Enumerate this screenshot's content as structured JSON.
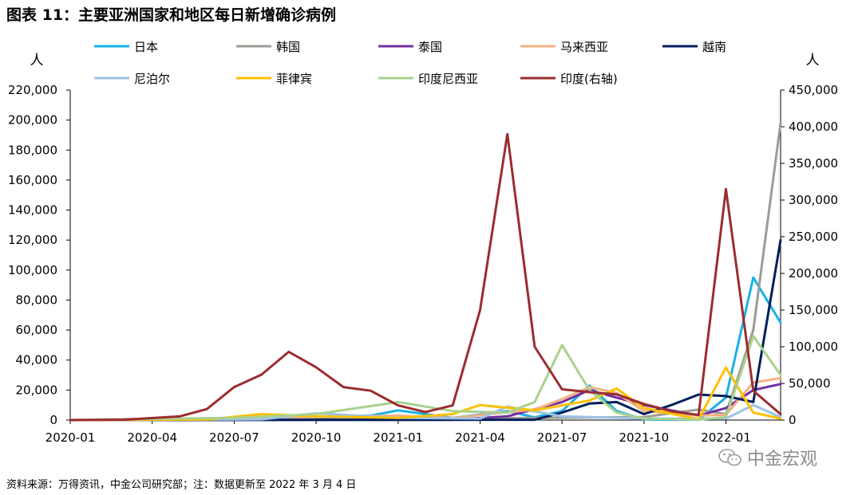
{
  "title": "图表 11：主要亚洲国家和地区每日新增确诊病例",
  "source": "资料来源：万得资讯，中金公司研究部；注：数据更新至 2022 年 3 月 4 日",
  "watermark": "中金宏观",
  "chart_data": {
    "type": "line",
    "title": "图表 11：主要亚洲国家和地区每日新增确诊病例",
    "ylabel_left": "人",
    "ylabel_right": "人",
    "ylim_left": [
      0,
      220000
    ],
    "ylim_right": [
      0,
      450000
    ],
    "yticks_left": [
      "0",
      "20,000",
      "40,000",
      "60,000",
      "80,000",
      "100,000",
      "120,000",
      "140,000",
      "160,000",
      "180,000",
      "200,000",
      "220,000"
    ],
    "yticks_right": [
      "0",
      "50,000",
      "100,000",
      "150,000",
      "200,000",
      "250,000",
      "300,000",
      "350,000",
      "400,000",
      "450,000"
    ],
    "xticks": [
      "2020-01",
      "2020-04",
      "2020-07",
      "2020-10",
      "2021-01",
      "2021-04",
      "2021-07",
      "2021-10",
      "2022-01"
    ],
    "xlim": [
      "2020-01",
      "2022-03"
    ],
    "grid": false,
    "legend_position": "top",
    "series": [
      {
        "name": "日本",
        "color": "#1ab0e8",
        "axis": "left",
        "x": [
          "2020-01",
          "2020-07",
          "2020-12",
          "2021-01",
          "2021-03",
          "2021-05",
          "2021-06",
          "2021-07",
          "2021-08",
          "2021-09",
          "2021-10",
          "2021-11",
          "2021-12",
          "2022-01",
          "2022-02",
          "2022-03"
        ],
        "values": [
          0,
          500,
          3000,
          6500,
          1500,
          6000,
          1800,
          6000,
          23000,
          6000,
          500,
          200,
          200,
          15000,
          95000,
          65000
        ]
      },
      {
        "name": "韩国",
        "color": "#9c9c96",
        "axis": "left",
        "x": [
          "2020-01",
          "2020-03",
          "2021-01",
          "2021-07",
          "2021-10",
          "2021-12",
          "2022-01",
          "2022-02",
          "2022-03"
        ],
        "values": [
          0,
          700,
          800,
          1600,
          2000,
          7000,
          4000,
          60000,
          198000
        ]
      },
      {
        "name": "泰国",
        "color": "#7030a0",
        "axis": "left",
        "x": [
          "2020-01",
          "2021-03",
          "2021-05",
          "2021-07",
          "2021-08",
          "2021-10",
          "2021-12",
          "2022-01",
          "2022-02",
          "2022-03"
        ],
        "values": [
          0,
          200,
          2500,
          12000,
          20000,
          10000,
          3000,
          8000,
          20000,
          24000
        ]
      },
      {
        "name": "马来西亚",
        "color": "#f4b183",
        "axis": "left",
        "x": [
          "2020-01",
          "2021-01",
          "2021-03",
          "2021-06",
          "2021-07",
          "2021-08",
          "2021-09",
          "2021-10",
          "2021-12",
          "2022-01",
          "2022-02",
          "2022-03"
        ],
        "values": [
          0,
          3000,
          1500,
          7000,
          14000,
          22000,
          18000,
          6000,
          3000,
          3500,
          25000,
          28000
        ]
      },
      {
        "name": "越南",
        "color": "#001f5b",
        "axis": "left",
        "x": [
          "2020-01",
          "2021-06",
          "2021-07",
          "2021-08",
          "2021-09",
          "2021-10",
          "2021-11",
          "2021-12",
          "2022-01",
          "2022-02",
          "2022-03"
        ],
        "values": [
          0,
          200,
          5000,
          11000,
          12000,
          4000,
          10000,
          17000,
          16000,
          12000,
          120000
        ]
      },
      {
        "name": "尼泊尔",
        "color": "#9dc3e6",
        "axis": "left",
        "x": [
          "2020-01",
          "2020-08",
          "2020-10",
          "2021-01",
          "2021-04",
          "2021-05",
          "2021-07",
          "2021-10",
          "2022-01",
          "2022-02",
          "2022-03"
        ],
        "values": [
          0,
          500,
          4500,
          1500,
          1000,
          9000,
          2500,
          1000,
          1000,
          10000,
          2000
        ]
      },
      {
        "name": "菲律宾",
        "color": "#ffc000",
        "axis": "left",
        "x": [
          "2020-01",
          "2020-06",
          "2020-08",
          "2020-10",
          "2021-01",
          "2021-03",
          "2021-04",
          "2021-06",
          "2021-08",
          "2021-09",
          "2021-10",
          "2021-12",
          "2022-01",
          "2022-02",
          "2022-03"
        ],
        "values": [
          0,
          300,
          4000,
          2500,
          1500,
          4000,
          10000,
          6500,
          13000,
          21000,
          8000,
          500,
          35000,
          5000,
          1000
        ]
      },
      {
        "name": "印度尼西亚",
        "color": "#a9d18e",
        "axis": "left",
        "x": [
          "2020-01",
          "2020-07",
          "2020-10",
          "2021-01",
          "2021-03",
          "2021-05",
          "2021-06",
          "2021-07",
          "2021-08",
          "2021-09",
          "2021-10",
          "2021-12",
          "2022-01",
          "2022-02",
          "2022-03"
        ],
        "values": [
          0,
          1500,
          4000,
          12000,
          6000,
          5000,
          12000,
          50000,
          20000,
          5000,
          1000,
          200,
          2000,
          56000,
          30000
        ]
      },
      {
        "name": "印度(右轴)",
        "color": "#9b2d30",
        "axis": "right",
        "x": [
          "2020-01",
          "2020-03",
          "2020-05",
          "2020-06",
          "2020-07",
          "2020-08",
          "2020-09",
          "2020-10",
          "2020-11",
          "2020-12",
          "2021-01",
          "2021-02",
          "2021-03",
          "2021-04",
          "2021-05",
          "2021-06",
          "2021-07",
          "2021-08",
          "2021-09",
          "2021-10",
          "2021-11",
          "2021-12",
          "2022-01",
          "2022-02",
          "2022-03"
        ],
        "values": [
          0,
          500,
          5000,
          15000,
          45000,
          62000,
          93000,
          72000,
          45000,
          40000,
          20000,
          11000,
          20000,
          150000,
          390000,
          100000,
          42000,
          38000,
          35000,
          22000,
          12000,
          7000,
          315000,
          40000,
          8000
        ]
      }
    ]
  }
}
